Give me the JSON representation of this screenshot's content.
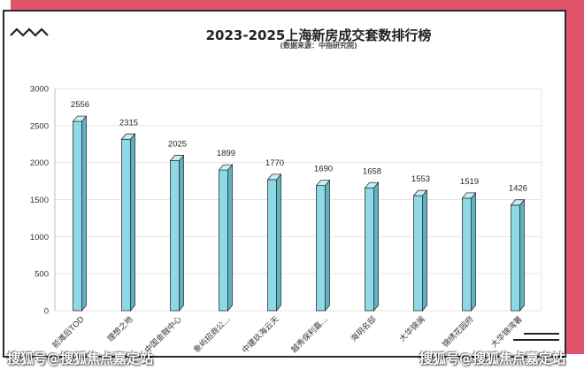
{
  "chart_data": {
    "type": "bar",
    "title": "2023-2025上海新房成交套数排行榜",
    "subtitle": "(数据来源：中指研究院)",
    "categories": [
      "前滩后TOD",
      "理想之地",
      "中国金融中心",
      "象屿招商公...",
      "中建玖海云天",
      "越秀保利嘉...",
      "海玥名邸",
      "大华锦澜",
      "锦绣花园府",
      "大华锦湾著"
    ],
    "values": [
      2556,
      2315,
      2025,
      1899,
      1770,
      1690,
      1658,
      1553,
      1519,
      1426
    ],
    "ylim": [
      0,
      3000
    ],
    "yticks": [
      0,
      500,
      1000,
      1500,
      2000,
      2500,
      3000
    ],
    "grid": true,
    "colors": {
      "bar_front": "#8fd9e6",
      "bar_top": "#c9eef5",
      "bar_side": "#5cb3c3",
      "outline": "#333333",
      "frame": "#e0546e"
    }
  },
  "watermarks": {
    "left": "搜狐号@搜狐焦点嘉定站",
    "right": "搜狐号@搜狐焦点嘉定站"
  }
}
